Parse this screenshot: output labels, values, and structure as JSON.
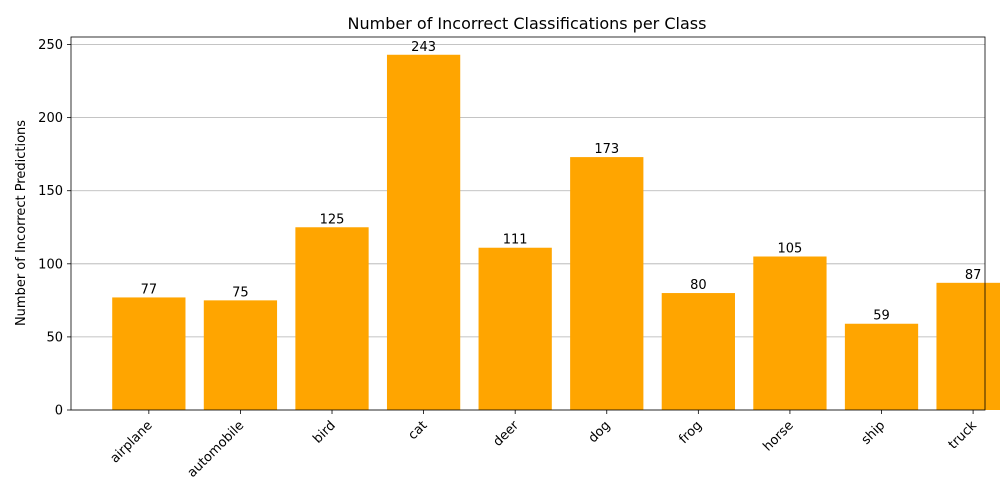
{
  "chart_data": {
    "type": "bar",
    "title": "Number of Incorrect Classifications per Class",
    "xlabel": "",
    "ylabel": "Number of Incorrect Predictions",
    "categories": [
      "airplane",
      "automobile",
      "bird",
      "cat",
      "deer",
      "dog",
      "frog",
      "horse",
      "ship",
      "truck"
    ],
    "values": [
      77,
      75,
      125,
      243,
      111,
      173,
      80,
      105,
      59,
      87
    ],
    "ylim": [
      0,
      255.15
    ],
    "yticks": [
      0,
      50,
      100,
      150,
      200,
      250
    ],
    "grid": "y",
    "bar_color": "#ffa500",
    "x_tick_rotation": 45
  }
}
